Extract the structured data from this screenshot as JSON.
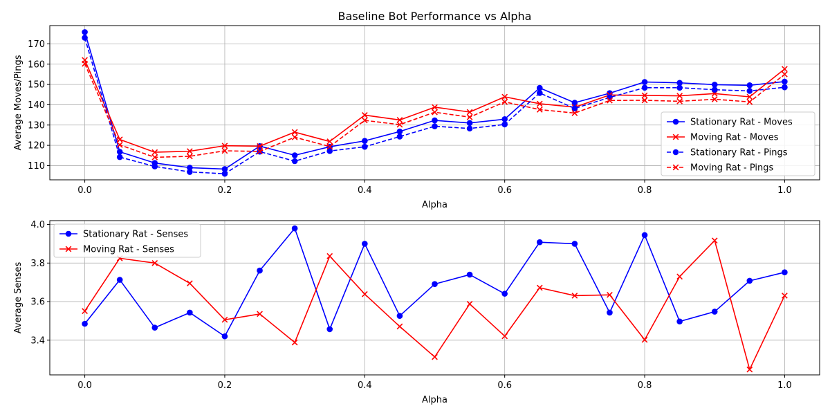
{
  "chart_data": [
    {
      "type": "line",
      "title": "Baseline Bot Performance vs Alpha",
      "xlabel": "Alpha",
      "ylabel": "Average Moves/Pings",
      "xlim": [
        -0.05,
        1.05
      ],
      "ylim": [
        103,
        179
      ],
      "xticks": [
        0.0,
        0.2,
        0.4,
        0.6,
        0.8,
        1.0
      ],
      "xtick_labels": [
        "0.0",
        "0.2",
        "0.4",
        "0.6",
        "0.8",
        "1.0"
      ],
      "yticks": [
        110,
        120,
        130,
        140,
        150,
        160,
        170
      ],
      "ytick_labels": [
        "110",
        "120",
        "130",
        "140",
        "150",
        "160",
        "170"
      ],
      "grid": true,
      "legend_position": "center-right",
      "x": [
        0.0,
        0.05,
        0.1,
        0.15,
        0.2,
        0.25,
        0.3,
        0.35,
        0.4,
        0.45,
        0.5,
        0.55,
        0.6,
        0.65,
        0.7,
        0.75,
        0.8,
        0.85,
        0.9,
        0.95,
        1.0
      ],
      "series": [
        {
          "name": "Stationary Rat - Moves",
          "color": "#0000ff",
          "marker": "circle",
          "dash": "solid",
          "values": [
            175.8,
            116.8,
            111.3,
            109.0,
            108.3,
            119.6,
            115.1,
            119.3,
            122.2,
            126.8,
            132.3,
            131.0,
            132.9,
            148.3,
            141.0,
            145.7,
            151.2,
            150.8,
            149.9,
            149.6,
            151.4
          ]
        },
        {
          "name": "Moving Rat - Moves",
          "color": "#ff0000",
          "marker": "x",
          "dash": "solid",
          "values": [
            162.0,
            122.9,
            116.6,
            117.1,
            119.8,
            119.6,
            126.5,
            121.9,
            134.9,
            132.5,
            138.8,
            136.4,
            143.9,
            140.5,
            138.8,
            144.8,
            144.6,
            144.4,
            145.5,
            143.9,
            157.6
          ]
        },
        {
          "name": "Stationary Rat - Pings",
          "color": "#0000ff",
          "marker": "circle",
          "dash": "dashed",
          "values": [
            173.0,
            114.2,
            109.6,
            106.9,
            106.0,
            116.9,
            112.2,
            117.2,
            119.3,
            124.3,
            129.4,
            128.3,
            130.3,
            145.8,
            138.2,
            143.6,
            148.4,
            148.4,
            147.4,
            146.8,
            148.6
          ]
        },
        {
          "name": "Moving Rat - Pings",
          "color": "#ff0000",
          "marker": "x",
          "dash": "dashed",
          "values": [
            160.2,
            120.2,
            114.1,
            114.6,
            117.3,
            117.0,
            124.0,
            119.4,
            132.3,
            130.2,
            136.3,
            133.9,
            141.4,
            137.6,
            135.9,
            142.1,
            142.2,
            141.7,
            142.7,
            141.4,
            155.0
          ]
        }
      ]
    },
    {
      "type": "line",
      "title": "",
      "xlabel": "Alpha",
      "ylabel": "Average Senses",
      "xlim": [
        -0.05,
        1.05
      ],
      "ylim": [
        3.22,
        4.02
      ],
      "xticks": [
        0.0,
        0.2,
        0.4,
        0.6,
        0.8,
        1.0
      ],
      "xtick_labels": [
        "0.0",
        "0.2",
        "0.4",
        "0.6",
        "0.8",
        "1.0"
      ],
      "yticks": [
        3.4,
        3.6,
        3.8,
        4.0
      ],
      "ytick_labels": [
        "3.4",
        "3.6",
        "3.8",
        "4.0"
      ],
      "grid": true,
      "legend_position": "top-left",
      "x": [
        0.0,
        0.05,
        0.1,
        0.15,
        0.2,
        0.25,
        0.3,
        0.35,
        0.4,
        0.45,
        0.5,
        0.55,
        0.6,
        0.65,
        0.7,
        0.75,
        0.8,
        0.85,
        0.9,
        0.95,
        1.0
      ],
      "series": [
        {
          "name": "Stationary Rat - Senses",
          "color": "#0000ff",
          "marker": "circle",
          "dash": "solid",
          "values": [
            3.485,
            3.713,
            3.465,
            3.543,
            3.42,
            3.761,
            3.98,
            3.457,
            3.9,
            3.526,
            3.691,
            3.74,
            3.641,
            3.908,
            3.9,
            3.543,
            3.945,
            3.497,
            3.548,
            3.708,
            3.752
          ]
        },
        {
          "name": "Moving Rat - Senses",
          "color": "#ff0000",
          "marker": "x",
          "dash": "solid",
          "values": [
            3.551,
            3.825,
            3.8,
            3.695,
            3.506,
            3.536,
            3.388,
            3.836,
            3.639,
            3.471,
            3.313,
            3.588,
            3.421,
            3.672,
            3.631,
            3.635,
            3.402,
            3.73,
            3.917,
            3.248,
            3.631
          ]
        }
      ]
    }
  ]
}
